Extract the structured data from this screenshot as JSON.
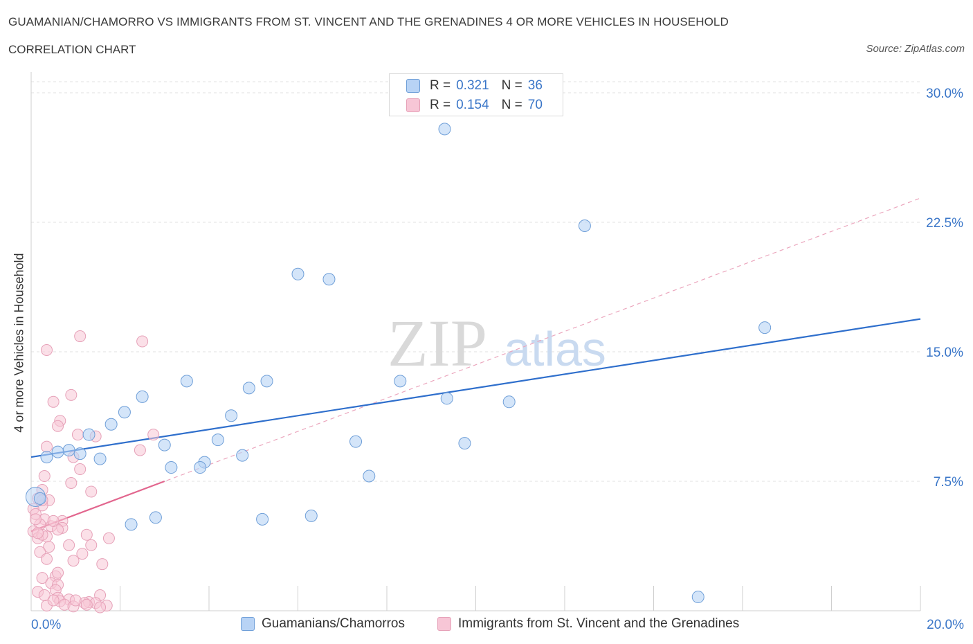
{
  "header": {
    "title": "GUAMANIAN/CHAMORRO VS IMMIGRANTS FROM ST. VINCENT AND THE GRENADINES 4 OR MORE VEHICLES IN HOUSEHOLD",
    "subtitle": "CORRELATION CHART",
    "source": "Source: ZipAtlas.com"
  },
  "watermark": {
    "zip": "ZIP",
    "atlas": "atlas"
  },
  "legend": {
    "series1": {
      "r_label": "R =",
      "r_value": "0.321",
      "n_label": "N =",
      "n_value": "36"
    },
    "series2": {
      "r_label": "R =",
      "r_value": "0.154",
      "n_label": "N =",
      "n_value": "70"
    }
  },
  "colors": {
    "blue": "#6f9fd8",
    "blue_fill": "#b8d3f5",
    "blue_line": "#2f6fcc",
    "pink": "#e6a1b8",
    "pink_fill": "#f7c6d6",
    "pink_line": "#e2668e",
    "tick_label": "#3a76c8",
    "grid": "#e2e2e2"
  },
  "chart_data": {
    "type": "scatter",
    "title": "GUAMANIAN/CHAMORRO VS IMMIGRANTS FROM ST. VINCENT AND THE GRENADINES 4 OR MORE VEHICLES IN HOUSEHOLD",
    "xlabel": "",
    "ylabel": "4 or more Vehicles in Household",
    "xlim": [
      0,
      20
    ],
    "ylim": [
      0,
      30
    ],
    "x_tick_labels": [
      "0.0%",
      "20.0%"
    ],
    "y_ticks": [
      7.5,
      15.0,
      22.5,
      30.0
    ],
    "y_tick_labels": [
      "7.5%",
      "15.0%",
      "22.5%",
      "30.0%"
    ],
    "series": [
      {
        "name": "Guamanians/Chamorros",
        "color": "#6f9fd8",
        "points": [
          [
            9.3,
            27.9
          ],
          [
            12.45,
            22.3
          ],
          [
            6.0,
            19.5
          ],
          [
            6.7,
            19.2
          ],
          [
            16.5,
            16.4
          ],
          [
            3.5,
            13.3
          ],
          [
            5.3,
            13.3
          ],
          [
            4.9,
            12.9
          ],
          [
            8.3,
            13.3
          ],
          [
            2.5,
            12.4
          ],
          [
            9.35,
            12.3
          ],
          [
            10.75,
            12.1
          ],
          [
            2.1,
            11.5
          ],
          [
            4.5,
            11.3
          ],
          [
            1.8,
            10.8
          ],
          [
            1.3,
            10.2
          ],
          [
            4.2,
            9.9
          ],
          [
            7.3,
            9.8
          ],
          [
            9.75,
            9.7
          ],
          [
            3.0,
            9.6
          ],
          [
            0.85,
            9.3
          ],
          [
            0.6,
            9.2
          ],
          [
            1.1,
            9.1
          ],
          [
            4.75,
            9.0
          ],
          [
            0.35,
            8.9
          ],
          [
            1.55,
            8.8
          ],
          [
            3.9,
            8.6
          ],
          [
            3.15,
            8.3
          ],
          [
            3.8,
            8.3
          ],
          [
            7.6,
            7.8
          ],
          [
            0.2,
            6.5
          ],
          [
            2.8,
            5.4
          ],
          [
            6.3,
            5.5
          ],
          [
            5.2,
            5.3
          ],
          [
            2.25,
            5.0
          ],
          [
            15.0,
            0.8
          ]
        ],
        "trend_line": {
          "x": [
            0,
            20
          ],
          "y": [
            8.9,
            16.9
          ]
        }
      },
      {
        "name": "Immigrants from St. Vincent and the Grenadines",
        "color": "#e6a1b8",
        "points": [
          [
            1.1,
            15.9
          ],
          [
            2.5,
            15.6
          ],
          [
            0.35,
            15.1
          ],
          [
            0.9,
            12.5
          ],
          [
            0.5,
            12.1
          ],
          [
            0.65,
            11.0
          ],
          [
            0.6,
            10.7
          ],
          [
            1.05,
            10.2
          ],
          [
            2.75,
            10.2
          ],
          [
            1.45,
            10.1
          ],
          [
            0.35,
            9.5
          ],
          [
            2.45,
            9.3
          ],
          [
            0.95,
            8.9
          ],
          [
            1.1,
            8.2
          ],
          [
            0.3,
            7.8
          ],
          [
            0.9,
            7.4
          ],
          [
            0.25,
            7.0
          ],
          [
            1.35,
            6.9
          ],
          [
            0.15,
            6.5
          ],
          [
            0.4,
            6.4
          ],
          [
            0.25,
            6.1
          ],
          [
            0.05,
            5.9
          ],
          [
            0.1,
            5.6
          ],
          [
            0.3,
            5.3
          ],
          [
            0.7,
            5.2
          ],
          [
            0.2,
            5.0
          ],
          [
            0.45,
            4.9
          ],
          [
            0.7,
            4.8
          ],
          [
            0.05,
            4.6
          ],
          [
            0.6,
            4.7
          ],
          [
            1.25,
            4.4
          ],
          [
            0.35,
            4.3
          ],
          [
            0.15,
            4.2
          ],
          [
            1.75,
            4.2
          ],
          [
            0.25,
            4.4
          ],
          [
            0.4,
            3.7
          ],
          [
            0.85,
            3.8
          ],
          [
            1.35,
            3.8
          ],
          [
            0.2,
            3.4
          ],
          [
            1.15,
            3.3
          ],
          [
            0.35,
            3.0
          ],
          [
            0.95,
            2.9
          ],
          [
            1.6,
            2.7
          ],
          [
            0.55,
            2.0
          ],
          [
            0.25,
            1.9
          ],
          [
            0.45,
            1.6
          ],
          [
            0.6,
            1.5
          ],
          [
            0.55,
            1.2
          ],
          [
            0.15,
            1.1
          ],
          [
            1.55,
            0.9
          ],
          [
            0.6,
            0.75
          ],
          [
            0.85,
            0.65
          ],
          [
            0.65,
            0.55
          ],
          [
            1.3,
            0.5
          ],
          [
            1.45,
            0.45
          ],
          [
            1.2,
            0.45
          ],
          [
            0.75,
            0.35
          ],
          [
            1.7,
            0.3
          ],
          [
            0.35,
            0.3
          ],
          [
            0.95,
            0.25
          ],
          [
            1.55,
            0.2
          ],
          [
            1.25,
            0.35
          ],
          [
            0.5,
            0.6
          ],
          [
            0.1,
            5.3
          ],
          [
            0.25,
            6.4
          ],
          [
            0.15,
            4.5
          ],
          [
            0.5,
            5.2
          ],
          [
            0.3,
            0.9
          ],
          [
            1.0,
            0.6
          ],
          [
            0.6,
            2.2
          ]
        ],
        "trend_line": {
          "x": [
            0,
            3.0
          ],
          "y": [
            4.6,
            7.5
          ]
        },
        "trend_line_extended": {
          "x": [
            0,
            20
          ],
          "y": [
            4.6,
            23.9
          ]
        }
      }
    ],
    "legend_position": "top-center"
  },
  "bottom_legend": {
    "item1": "Guamanians/Chamorros",
    "item2": "Immigrants from St. Vincent and the Grenadines"
  }
}
